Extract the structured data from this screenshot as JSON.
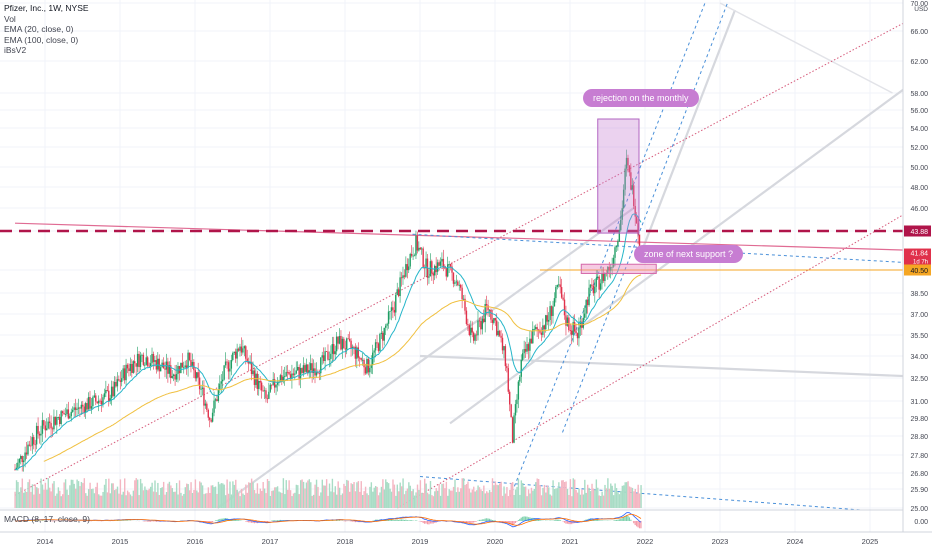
{
  "legend": {
    "title": "Pfizer, Inc., 1W, NYSE",
    "items": [
      "Vol",
      "EMA (20, close, 0)",
      "EMA (100, close, 0)",
      "iBsV2"
    ]
  },
  "currency": "USD",
  "annotations": {
    "rejection": "rejection on the monthly",
    "support": "zone of next support ?"
  },
  "macd_label": "MACD (8, 17, close, 9)",
  "price_badges": {
    "resistance": "43.88",
    "last": "41.84",
    "countdown": "1d 7h",
    "support": "40.50"
  },
  "colors": {
    "resistance_line": "#b0154a",
    "support_line": "#f5a623",
    "callout": "#c77dd2",
    "channel_blue": "#4a90d9",
    "ema20": "#26b6c9",
    "ema100": "#f0c040",
    "candle_up": "#1e9d63",
    "candle_down": "#e0314b"
  },
  "chart_data": {
    "type": "line",
    "title": "Pfizer, Inc., 1W, NYSE",
    "xlabel": "",
    "ylabel": "USD",
    "x_ticks": [
      "2014",
      "2015",
      "2016",
      "2017",
      "2018",
      "2019",
      "2020",
      "2021",
      "2022",
      "2023",
      "2024",
      "2025"
    ],
    "y_ticks": [
      70.0,
      66.0,
      62.0,
      58.0,
      56.0,
      54.0,
      52.0,
      50.0,
      48.0,
      46.0,
      43.88,
      40.5,
      38.5,
      37.0,
      35.5,
      34.0,
      32.5,
      31.0,
      29.8,
      28.8,
      27.8,
      26.8,
      25.9,
      25.0
    ],
    "macd_ticks": [
      "0.00"
    ],
    "ylim": [
      24.5,
      70
    ],
    "xlim": [
      2013.6,
      2025.7
    ],
    "series": [
      {
        "name": "Pfizer, Inc., 1W, NYSE",
        "x": [
          2013.6,
          2013.8,
          2014.0,
          2014.3,
          2014.6,
          2014.9,
          2015.1,
          2015.3,
          2015.5,
          2015.7,
          2015.9,
          2016.1,
          2016.2,
          2016.4,
          2016.6,
          2016.8,
          2016.95,
          2017.1,
          2017.3,
          2017.5,
          2017.7,
          2017.9,
          2018.1,
          2018.3,
          2018.5,
          2018.65,
          2018.85,
          2018.95,
          2019.1,
          2019.3,
          2019.5,
          2019.7,
          2019.9,
          2020.0,
          2020.15,
          2020.23,
          2020.35,
          2020.5,
          2020.7,
          2020.85,
          2020.95,
          2021.1,
          2021.25,
          2021.4,
          2021.55,
          2021.68,
          2021.75,
          2021.85,
          2021.95
        ],
        "values": [
          27.0,
          28.5,
          29.4,
          30.2,
          30.8,
          31.5,
          33.2,
          34.0,
          33.5,
          32.8,
          33.8,
          31.5,
          29.8,
          33.0,
          34.8,
          32.5,
          31.0,
          32.5,
          32.8,
          33.0,
          33.5,
          35.0,
          34.5,
          33.2,
          35.5,
          37.5,
          41.5,
          42.8,
          40.5,
          41.0,
          39.5,
          35.0,
          37.5,
          36.5,
          33.5,
          28.5,
          33.5,
          35.5,
          36.5,
          39.0,
          36.5,
          35.5,
          38.5,
          39.5,
          41.0,
          45.0,
          50.5,
          47.0,
          41.84
        ]
      }
    ]
  }
}
